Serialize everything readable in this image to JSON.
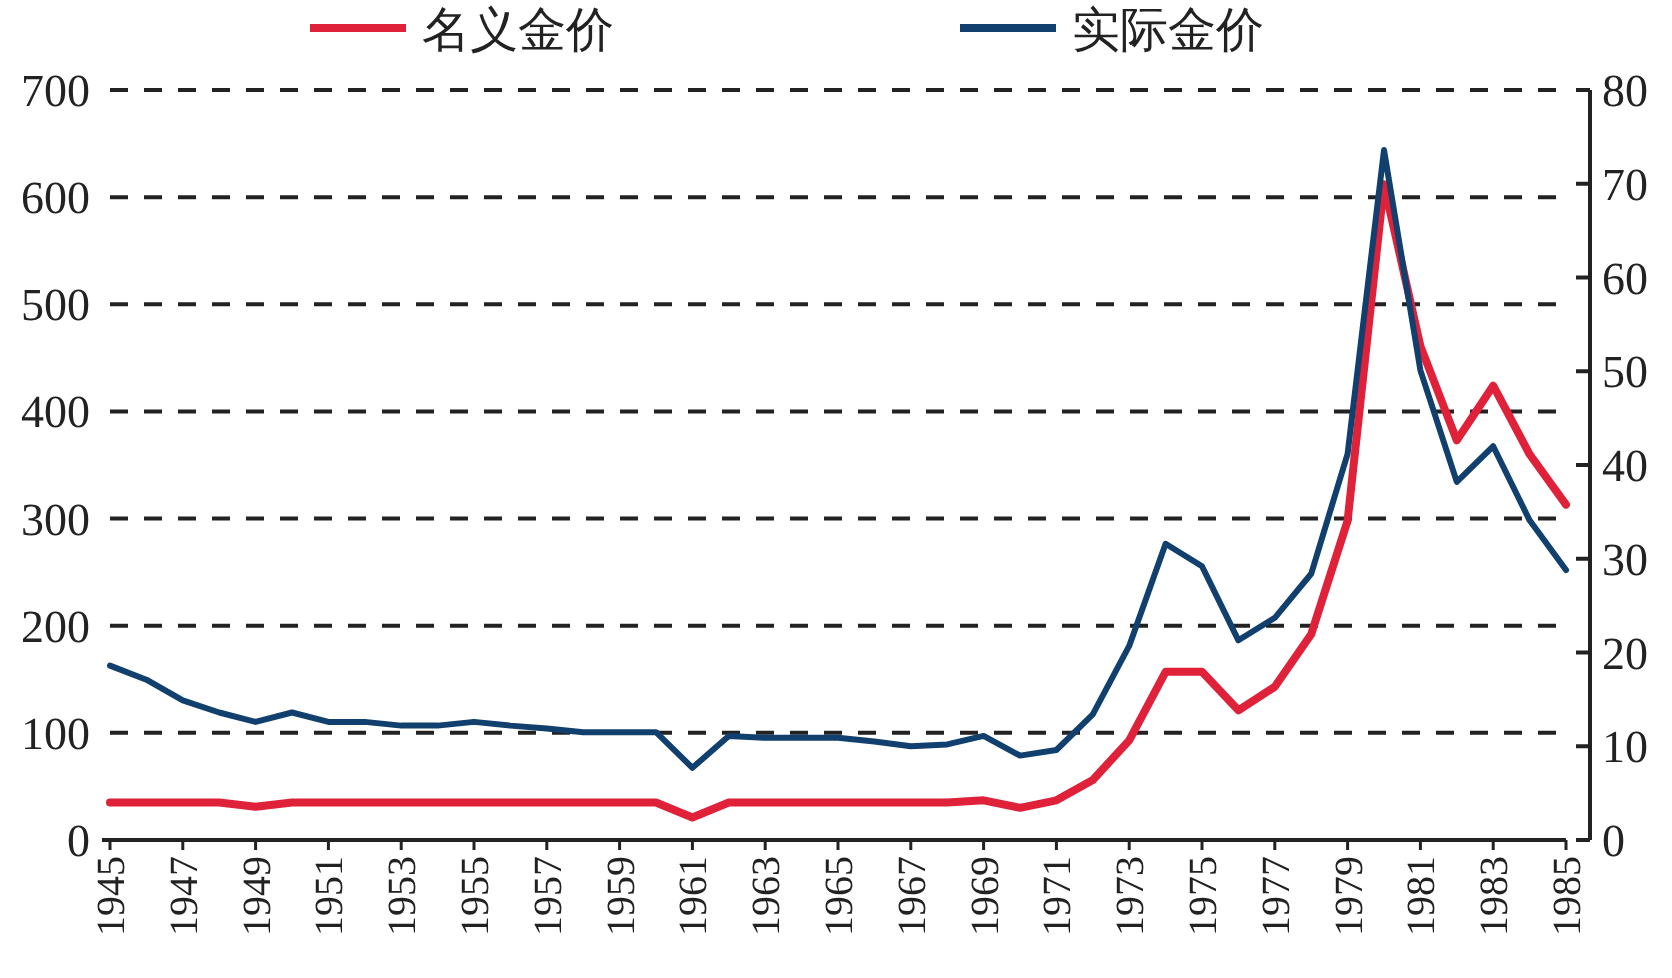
{
  "chart_data": {
    "type": "line",
    "x": [
      1945,
      1946,
      1947,
      1948,
      1949,
      1950,
      1951,
      1952,
      1953,
      1954,
      1955,
      1956,
      1957,
      1958,
      1959,
      1960,
      1961,
      1962,
      1963,
      1964,
      1965,
      1966,
      1967,
      1968,
      1969,
      1970,
      1971,
      1972,
      1973,
      1974,
      1975,
      1976,
      1977,
      1978,
      1979,
      1980,
      1981,
      1982,
      1983,
      1984,
      1985
    ],
    "series": [
      {
        "name": "名义金价",
        "color": "#e0213a",
        "values": [
          35,
          35,
          35,
          35,
          31,
          35,
          35,
          35,
          35,
          35,
          35,
          35,
          35,
          35,
          35,
          35,
          21,
          35,
          35,
          35,
          35,
          35,
          35,
          35,
          37,
          30,
          37,
          56,
          93,
          157,
          157,
          121,
          143,
          192,
          298,
          612,
          461,
          373,
          424,
          360,
          313
        ]
      },
      {
        "name": "实际金价",
        "color": "#11406e",
        "axis": "y2",
        "values": [
          18.6,
          17.1,
          14.9,
          13.6,
          12.6,
          13.6,
          12.6,
          12.6,
          12.2,
          12.2,
          12.6,
          12.2,
          11.9,
          11.5,
          11.5,
          11.5,
          7.7,
          11.1,
          10.9,
          10.9,
          10.9,
          10.5,
          10.0,
          10.2,
          11.1,
          9.0,
          9.6,
          13.4,
          20.7,
          31.6,
          29.2,
          21.3,
          23.7,
          28.4,
          41.2,
          73.6,
          50.1,
          38.2,
          42.0,
          34.1,
          28.8
        ]
      }
    ],
    "xlim": [
      1945,
      1985
    ],
    "xticks": [
      1945,
      1947,
      1949,
      1951,
      1953,
      1955,
      1957,
      1959,
      1961,
      1963,
      1965,
      1967,
      1969,
      1971,
      1973,
      1975,
      1977,
      1979,
      1981,
      1983,
      1985
    ],
    "ylim": [
      0,
      700
    ],
    "yticks": [
      0,
      100,
      200,
      300,
      400,
      500,
      600,
      700
    ],
    "y2lim": [
      0,
      80
    ],
    "y2ticks": [
      0,
      10,
      20,
      30,
      40,
      50,
      60,
      70,
      80
    ],
    "grid": "y",
    "legend": "top",
    "line_style": "solid",
    "marker": "none"
  }
}
